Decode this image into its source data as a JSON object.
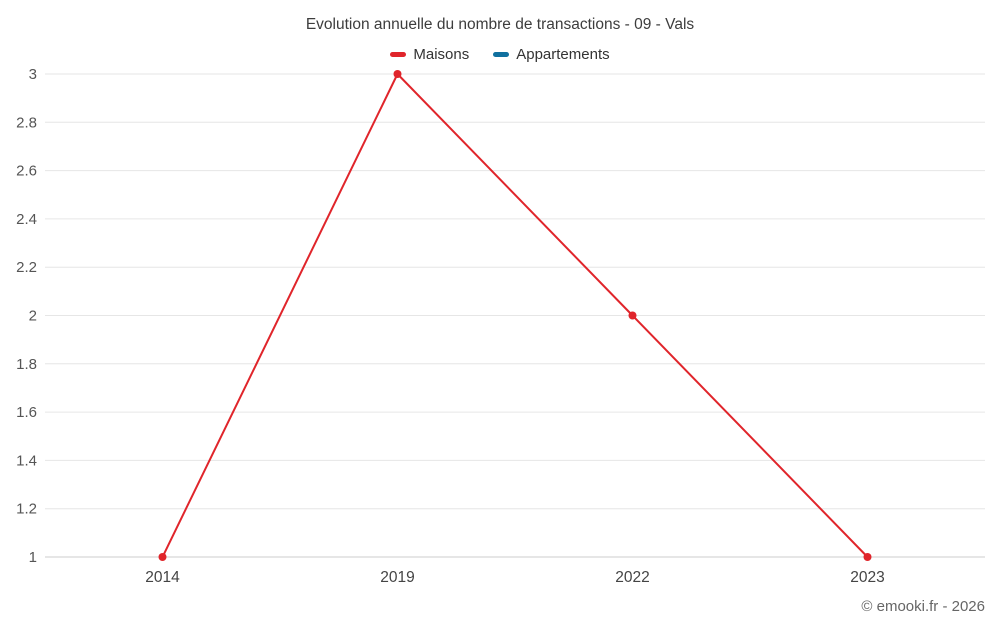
{
  "chart_data": {
    "type": "line",
    "title": "Evolution annuelle du nombre de transactions - 09 - Vals",
    "categories": [
      "2014",
      "2019",
      "2022",
      "2023"
    ],
    "series": [
      {
        "name": "Maisons",
        "color": "#e0252b",
        "values": [
          1,
          3,
          2,
          1
        ]
      },
      {
        "name": "Appartements",
        "color": "#10709f",
        "values": []
      }
    ],
    "ylim": [
      1,
      3
    ],
    "yticks": [
      1,
      1.2,
      1.4,
      1.6,
      1.8,
      2,
      2.2,
      2.4,
      2.6,
      2.8,
      3
    ],
    "grid": true,
    "legend_position": "top",
    "xlabel": "",
    "ylabel": ""
  },
  "footer": {
    "text": "© emooki.fr - 2026"
  }
}
